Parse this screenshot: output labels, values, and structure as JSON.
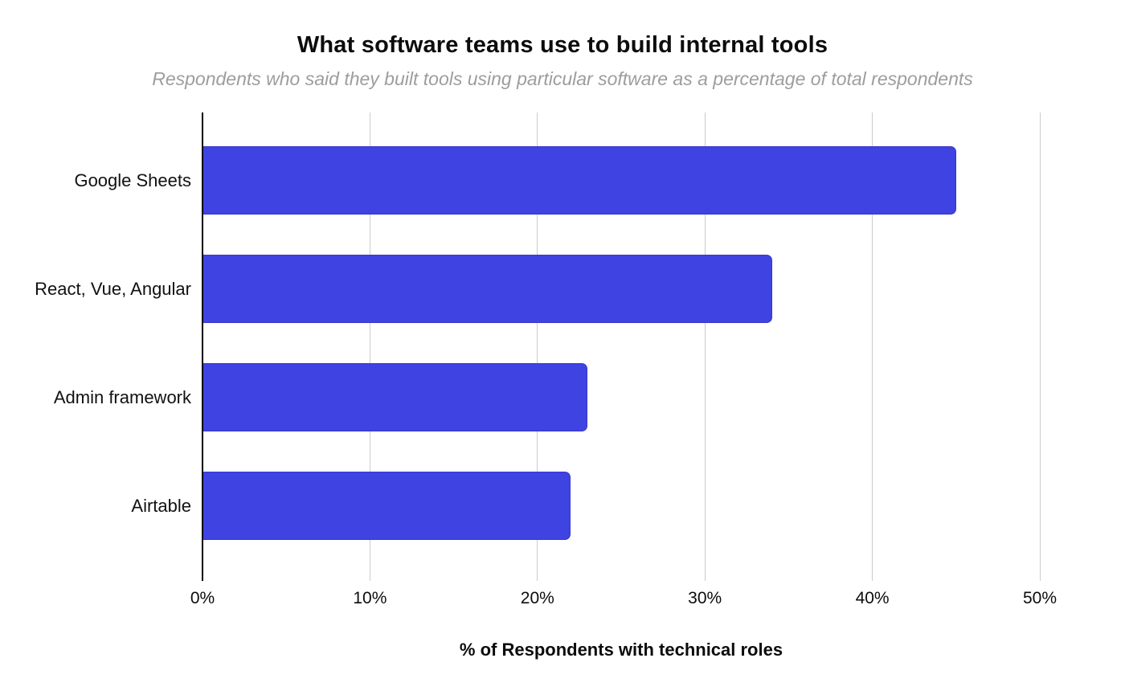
{
  "chart_data": {
    "type": "bar",
    "orientation": "horizontal",
    "title": "What software teams use to build internal tools",
    "subtitle": "Respondents who said they built tools using particular software as a percentage of total respondents",
    "categories": [
      "Google Sheets",
      "React, Vue, Angular",
      "Admin framework",
      "Airtable"
    ],
    "values": [
      45,
      34,
      23,
      22
    ],
    "unit": "%",
    "xlabel": "% of Respondents with technical roles",
    "ylabel": "",
    "xlim": [
      0,
      50
    ],
    "x_ticks": [
      "0%",
      "10%",
      "20%",
      "30%",
      "40%",
      "50%"
    ],
    "x_tick_values": [
      0,
      10,
      20,
      30,
      40,
      50
    ],
    "grid": "vertical-gridlines-every-10pct",
    "legend": "none",
    "colors": {
      "bar": "#3e43e2",
      "gridline": "#cccccc",
      "axis_line": "#000000",
      "title": "#0c0c0c",
      "subtitle": "#9d9d9d",
      "tick_label": "#0c0c0c",
      "background": "#ffffff"
    }
  }
}
